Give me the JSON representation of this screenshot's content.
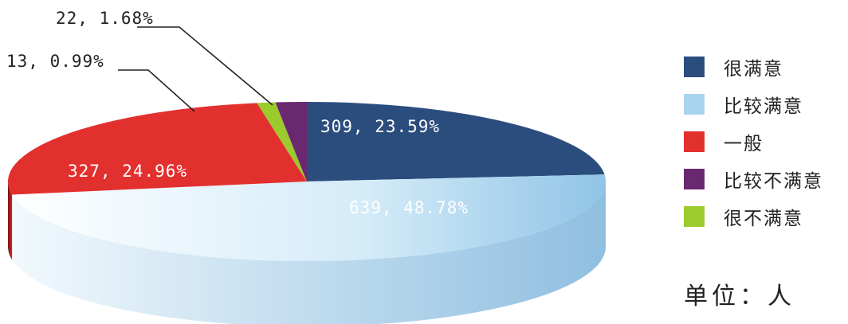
{
  "chart_data": {
    "type": "pie",
    "title": "",
    "unit_label": "单位：人",
    "slices": [
      {
        "name": "很满意",
        "value": 309,
        "percent": "23.59%",
        "label": "309, 23.59%",
        "color": "#2b4d7e"
      },
      {
        "name": "比较满意",
        "value": 639,
        "percent": "48.78%",
        "label": "639, 48.78%",
        "color": "#a8d4ee"
      },
      {
        "name": "一般",
        "value": 327,
        "percent": "24.96%",
        "label": "327, 24.96%",
        "color": "#e2302e"
      },
      {
        "name": "很不满意",
        "value": 13,
        "percent": "0.99%",
        "label": "13, 0.99%",
        "color": "#9ccb2e"
      },
      {
        "name": "比较不满意",
        "value": 22,
        "percent": "1.68%",
        "label": "22, 1.68%",
        "color": "#6a2870"
      }
    ],
    "legend": [
      {
        "name": "很满意",
        "color": "#2b4d7e"
      },
      {
        "name": "比较满意",
        "color": "#a8d4ee"
      },
      {
        "name": "一般",
        "color": "#e2302e"
      },
      {
        "name": "比较不满意",
        "color": "#6a2870"
      },
      {
        "name": "很不满意",
        "color": "#9ccb2e"
      }
    ],
    "legend_position": "right"
  }
}
